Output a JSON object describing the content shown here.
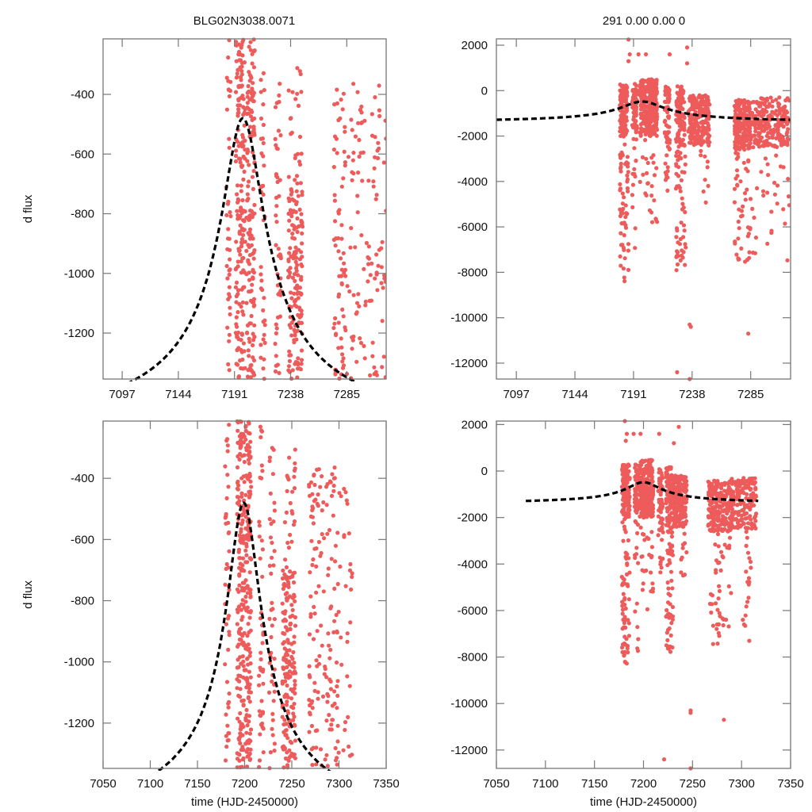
{
  "chart_data": [
    {
      "type": "scatter",
      "panel": "top-left",
      "title": "BLG02N3038.0071",
      "xlabel": "",
      "ylabel": "d flux",
      "xlim": [
        7081,
        7318
      ],
      "ylim": [
        -1354,
        -214
      ],
      "xticks": [
        7097,
        7144,
        7191,
        7238,
        7285
      ],
      "yticks": [
        -400,
        -600,
        -800,
        -1000,
        -1200
      ],
      "grid": false,
      "point_color": "#ee5b5b",
      "model_color": "#000000",
      "model": {
        "t0": 7198,
        "peak": -480,
        "base": -1560,
        "tE": 22
      },
      "clusters": [
        {
          "t": [
            7184,
            7188
          ],
          "y": [
            -1330,
            -214
          ],
          "n": 40
        },
        {
          "t": [
            7192,
            7200
          ],
          "y": [
            -1354,
            -214
          ],
          "n": 170
        },
        {
          "t": [
            7201,
            7208
          ],
          "y": [
            -1354,
            -214
          ],
          "n": 150
        },
        {
          "t": [
            7213,
            7217
          ],
          "y": [
            -1354,
            -260
          ],
          "n": 40
        },
        {
          "t": [
            7225,
            7230
          ],
          "y": [
            -1354,
            -320
          ],
          "n": 45
        },
        {
          "t": [
            7236,
            7248
          ],
          "y": [
            -1354,
            -700
          ],
          "n": 150
        },
        {
          "t": [
            7236,
            7248
          ],
          "y": [
            -700,
            -300
          ],
          "n": 25
        },
        {
          "t": [
            7274,
            7284
          ],
          "y": [
            -1354,
            -380
          ],
          "n": 70
        },
        {
          "t": [
            7285,
            7318
          ],
          "y": [
            -1354,
            -360
          ],
          "n": 110
        }
      ]
    },
    {
      "type": "scatter",
      "panel": "top-right",
      "title": "291  0.00  0.00  0",
      "xlabel": "",
      "ylabel": "",
      "xlim": [
        7081,
        7317
      ],
      "ylim": [
        -12700,
        2280
      ],
      "xticks": [
        7097,
        7144,
        7191,
        7238,
        7285
      ],
      "yticks": [
        2000,
        0,
        -2000,
        -4000,
        -6000,
        -8000,
        -10000,
        -12000
      ],
      "grid": false,
      "point_color": "#ee5b5b",
      "model_color": "#000000",
      "model": {
        "t0": 7198,
        "peak": -480,
        "base": -1420,
        "tE": 22
      },
      "clusters": [
        {
          "t": [
            7180,
            7186
          ],
          "y": [
            -2000,
            300
          ],
          "n": 120
        },
        {
          "t": [
            7180,
            7187
          ],
          "y": [
            -8500,
            -2000
          ],
          "n": 60
        },
        {
          "t": [
            7190,
            7194
          ],
          "y": [
            -1800,
            300
          ],
          "n": 60
        },
        {
          "t": [
            7190,
            7194
          ],
          "y": [
            -7000,
            -1800
          ],
          "n": 15
        },
        {
          "t": [
            7196,
            7210
          ],
          "y": [
            -2000,
            500
          ],
          "n": 260
        },
        {
          "t": [
            7196,
            7210
          ],
          "y": [
            -6000,
            -2000
          ],
          "n": 25
        },
        {
          "t": [
            7216,
            7220
          ],
          "y": [
            -2600,
            200
          ],
          "n": 60
        },
        {
          "t": [
            7216,
            7220
          ],
          "y": [
            -5000,
            -2600
          ],
          "n": 10
        },
        {
          "t": [
            7225,
            7232
          ],
          "y": [
            -2400,
            200
          ],
          "n": 90
        },
        {
          "t": [
            7225,
            7233
          ],
          "y": [
            -8000,
            -2400
          ],
          "n": 55
        },
        {
          "t": [
            7235,
            7252
          ],
          "y": [
            -2400,
            -200
          ],
          "n": 220
        },
        {
          "t": [
            7244,
            7252
          ],
          "y": [
            -5000,
            -2400
          ],
          "n": 10
        },
        {
          "t": [
            7272,
            7285
          ],
          "y": [
            -2600,
            -400
          ],
          "n": 220
        },
        {
          "t": [
            7272,
            7285
          ],
          "y": [
            -7600,
            -2600
          ],
          "n": 45
        },
        {
          "t": [
            7286,
            7316
          ],
          "y": [
            -2500,
            -300
          ],
          "n": 200
        },
        {
          "t": [
            7286,
            7316
          ],
          "y": [
            -7500,
            -2500
          ],
          "n": 30
        }
      ],
      "outliers": [
        [
          7187,
          2250
        ],
        [
          7188,
          1600
        ],
        [
          7195,
          1600
        ],
        [
          7201,
          1600
        ],
        [
          7220,
          1600
        ],
        [
          7234,
          1900
        ],
        [
          7234,
          1200
        ],
        [
          7236,
          -10300
        ],
        [
          7237,
          -10400
        ],
        [
          7283,
          -10700
        ],
        [
          7226,
          -12400
        ],
        [
          7236,
          -12700
        ],
        [
          7187,
          1300
        ]
      ]
    },
    {
      "type": "scatter",
      "panel": "bottom-left",
      "title": "",
      "xlabel": "time (HJD-2450000)",
      "ylabel": "d flux",
      "xlim": [
        7050,
        7350
      ],
      "ylim": [
        -1348,
        -213
      ],
      "xticks": [
        7050,
        7100,
        7150,
        7200,
        7250,
        7300,
        7350
      ],
      "yticks": [
        -400,
        -600,
        -800,
        -1000,
        -1200
      ],
      "grid": false,
      "point_color": "#ee5b5b",
      "model_color": "#000000",
      "model": {
        "t0": 7199,
        "peak": -480,
        "base": -1560,
        "tE": 22
      },
      "clusters": [
        {
          "t": [
            7179,
            7184
          ],
          "y": [
            -1330,
            -213
          ],
          "n": 45
        },
        {
          "t": [
            7192,
            7200
          ],
          "y": [
            -1348,
            -213
          ],
          "n": 170
        },
        {
          "t": [
            7201,
            7207
          ],
          "y": [
            -1348,
            -213
          ],
          "n": 150
        },
        {
          "t": [
            7215,
            7220
          ],
          "y": [
            -1348,
            -230
          ],
          "n": 45
        },
        {
          "t": [
            7226,
            7232
          ],
          "y": [
            -1348,
            -280
          ],
          "n": 45
        },
        {
          "t": [
            7240,
            7254
          ],
          "y": [
            -1348,
            -700
          ],
          "n": 170
        },
        {
          "t": [
            7240,
            7254
          ],
          "y": [
            -700,
            -300
          ],
          "n": 25
        },
        {
          "t": [
            7268,
            7300
          ],
          "y": [
            -1348,
            -360
          ],
          "n": 150
        },
        {
          "t": [
            7300,
            7315
          ],
          "y": [
            -1330,
            -420
          ],
          "n": 30
        }
      ]
    },
    {
      "type": "scatter",
      "panel": "bottom-right",
      "title": "",
      "xlabel": "time (HJD-2450000)",
      "ylabel": "",
      "xlim": [
        7050,
        7350
      ],
      "ylim": [
        -12790,
        2150
      ],
      "xticks": [
        7050,
        7100,
        7150,
        7200,
        7250,
        7300,
        7350
      ],
      "yticks": [
        2000,
        0,
        -2000,
        -4000,
        -6000,
        -8000,
        -10000,
        -12000
      ],
      "grid": false,
      "point_color": "#ee5b5b",
      "model_color": "#000000",
      "model": {
        "t0": 7200,
        "peak": -480,
        "base": -1420,
        "tE": 22,
        "range": [
          7080,
          7317
        ]
      },
      "clusters": [
        {
          "t": [
            7178,
            7186
          ],
          "y": [
            -2000,
            300
          ],
          "n": 120
        },
        {
          "t": [
            7178,
            7186
          ],
          "y": [
            -8400,
            -2000
          ],
          "n": 60
        },
        {
          "t": [
            7191,
            7195
          ],
          "y": [
            -1800,
            300
          ],
          "n": 60
        },
        {
          "t": [
            7191,
            7195
          ],
          "y": [
            -7800,
            -1800
          ],
          "n": 15
        },
        {
          "t": [
            7196,
            7210
          ],
          "y": [
            -2000,
            500
          ],
          "n": 260
        },
        {
          "t": [
            7196,
            7210
          ],
          "y": [
            -6000,
            -2000
          ],
          "n": 25
        },
        {
          "t": [
            7215,
            7220
          ],
          "y": [
            -2600,
            200
          ],
          "n": 60
        },
        {
          "t": [
            7215,
            7220
          ],
          "y": [
            -5000,
            -2600
          ],
          "n": 10
        },
        {
          "t": [
            7223,
            7229
          ],
          "y": [
            -2400,
            200
          ],
          "n": 90
        },
        {
          "t": [
            7223,
            7230
          ],
          "y": [
            -7900,
            -2400
          ],
          "n": 55
        },
        {
          "t": [
            7230,
            7244
          ],
          "y": [
            -2400,
            -200
          ],
          "n": 220
        },
        {
          "t": [
            7238,
            7244
          ],
          "y": [
            -4800,
            -2400
          ],
          "n": 10
        },
        {
          "t": [
            7266,
            7290
          ],
          "y": [
            -2600,
            -400
          ],
          "n": 220
        },
        {
          "t": [
            7266,
            7290
          ],
          "y": [
            -7500,
            -2600
          ],
          "n": 45
        },
        {
          "t": [
            7290,
            7315
          ],
          "y": [
            -2500,
            -300
          ],
          "n": 150
        },
        {
          "t": [
            7300,
            7310
          ],
          "y": [
            -7400,
            -2500
          ],
          "n": 20
        }
      ],
      "outliers": [
        [
          7181,
          2150
        ],
        [
          7183,
          1600
        ],
        [
          7190,
          1600
        ],
        [
          7197,
          1600
        ],
        [
          7216,
          1600
        ],
        [
          7236,
          1900
        ],
        [
          7231,
          1200
        ],
        [
          7248,
          -10300
        ],
        [
          7248,
          -10400
        ],
        [
          7282,
          -10700
        ],
        [
          7221,
          -12400
        ],
        [
          7248,
          -12790
        ],
        [
          7182,
          1300
        ]
      ]
    }
  ]
}
